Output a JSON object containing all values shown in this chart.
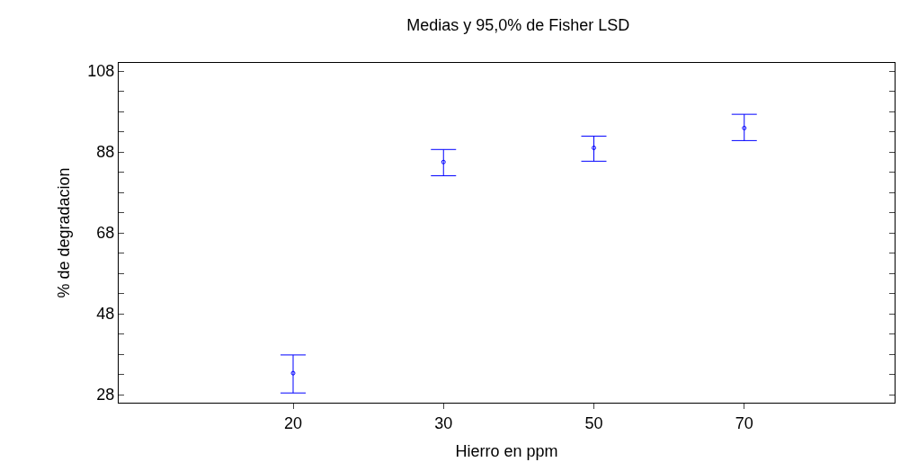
{
  "chart_data": {
    "type": "scatter",
    "title": "Medias y 95,0% de Fisher LSD",
    "xlabel": "Hierro en ppm",
    "ylabel": "% de degradacion",
    "categories": [
      "20",
      "30",
      "50",
      "70"
    ],
    "series": [
      {
        "color": "#0000ff",
        "values": [
          33.3,
          85.5,
          89.0,
          93.9
        ],
        "errors": [
          [
            28.4,
            37.8
          ],
          [
            82.1,
            88.6
          ],
          [
            85.7,
            91.9
          ],
          [
            90.8,
            97.3
          ]
        ]
      }
    ],
    "ylim": [
      26,
      110
    ],
    "yticks": [
      28,
      {
        "value": 33,
        "label": null
      },
      {
        "value": 38,
        "label": null
      },
      {
        "value": 43,
        "label": null
      },
      48,
      {
        "value": 53,
        "label": null
      },
      {
        "value": 58,
        "label": null
      },
      {
        "value": 63,
        "label": null
      },
      68,
      {
        "value": 73,
        "label": null
      },
      {
        "value": 78,
        "label": null
      },
      {
        "value": 83,
        "label": null
      },
      88,
      {
        "value": 93,
        "label": null
      },
      {
        "value": 98,
        "label": null
      },
      {
        "value": 103,
        "label": null
      },
      108
    ],
    "marker": "circle"
  }
}
